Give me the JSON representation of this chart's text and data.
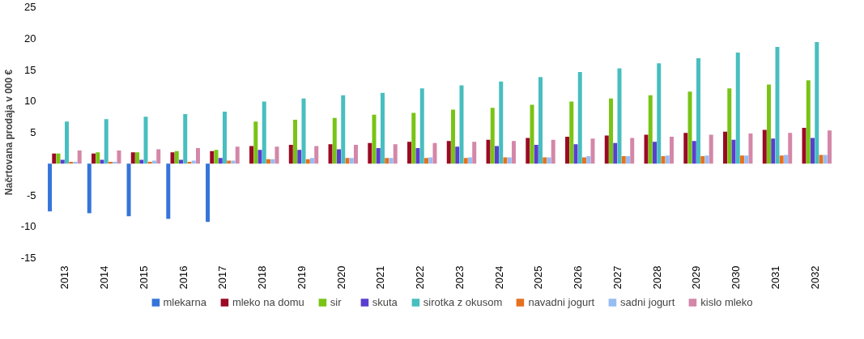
{
  "chart_data": {
    "type": "bar",
    "ylabel": "Načrtovana prodaja v 000 €",
    "categories": [
      "2013",
      "2014",
      "2015",
      "2016",
      "2017",
      "2018",
      "2019",
      "2020",
      "2021",
      "2022",
      "2023",
      "2024",
      "2025",
      "2026",
      "2027",
      "2028",
      "2029",
      "2030",
      "2031",
      "2032"
    ],
    "ylim": [
      -15,
      25
    ],
    "yticks": [
      -15,
      -10,
      -5,
      5,
      10,
      15,
      20,
      25
    ],
    "grid": false,
    "legend": "bottom",
    "series": [
      {
        "name": "mlekarna",
        "color": "#3575d9",
        "values": [
          -7.6,
          -7.9,
          -8.4,
          -8.8,
          -9.3,
          null,
          null,
          null,
          null,
          null,
          null,
          null,
          null,
          null,
          null,
          null,
          null,
          null,
          null,
          null
        ]
      },
      {
        "name": "mleko na domu",
        "color": "#9b0a24",
        "values": [
          1.6,
          1.6,
          1.8,
          1.8,
          2.0,
          2.8,
          3.0,
          3.1,
          3.3,
          3.5,
          3.6,
          3.8,
          4.1,
          4.3,
          4.5,
          4.6,
          4.9,
          5.1,
          5.4,
          5.7
        ]
      },
      {
        "name": "sir",
        "color": "#78c414",
        "values": [
          1.6,
          1.8,
          1.8,
          2.0,
          2.2,
          6.7,
          7.0,
          7.3,
          7.8,
          8.1,
          8.6,
          8.9,
          9.4,
          9.9,
          10.4,
          10.9,
          11.5,
          12.0,
          12.6,
          13.3
        ]
      },
      {
        "name": "skuta",
        "color": "#5a3ecf",
        "values": [
          0.6,
          0.6,
          0.6,
          0.6,
          0.9,
          2.2,
          2.2,
          2.3,
          2.5,
          2.5,
          2.7,
          2.8,
          3.0,
          3.1,
          3.3,
          3.5,
          3.6,
          3.8,
          4.0,
          4.1
        ]
      },
      {
        "name": "sirotka z okusom",
        "color": "#48bec0",
        "values": [
          6.7,
          7.1,
          7.5,
          7.9,
          8.3,
          9.9,
          10.4,
          10.9,
          11.3,
          12.0,
          12.5,
          13.1,
          13.8,
          14.6,
          15.2,
          16.0,
          16.8,
          17.7,
          18.6,
          19.4
        ]
      },
      {
        "name": "navadni jogurt",
        "color": "#e5711e",
        "values": [
          0.3,
          0.3,
          0.3,
          0.3,
          0.5,
          0.7,
          0.7,
          0.9,
          0.9,
          0.9,
          0.9,
          1.0,
          1.0,
          1.0,
          1.2,
          1.2,
          1.2,
          1.3,
          1.3,
          1.4
        ]
      },
      {
        "name": "sadni jogurt",
        "color": "#97bdf3",
        "values": [
          0.3,
          0.3,
          0.5,
          0.5,
          0.5,
          0.7,
          0.9,
          0.9,
          0.9,
          1.0,
          1.0,
          1.0,
          1.0,
          1.2,
          1.2,
          1.3,
          1.3,
          1.3,
          1.4,
          1.4
        ]
      },
      {
        "name": "kislo mleko",
        "color": "#d487a8",
        "values": [
          2.1,
          2.1,
          2.3,
          2.5,
          2.7,
          2.7,
          2.8,
          3.0,
          3.1,
          3.3,
          3.5,
          3.6,
          3.8,
          4.0,
          4.1,
          4.3,
          4.6,
          4.8,
          4.9,
          5.3
        ]
      }
    ]
  }
}
